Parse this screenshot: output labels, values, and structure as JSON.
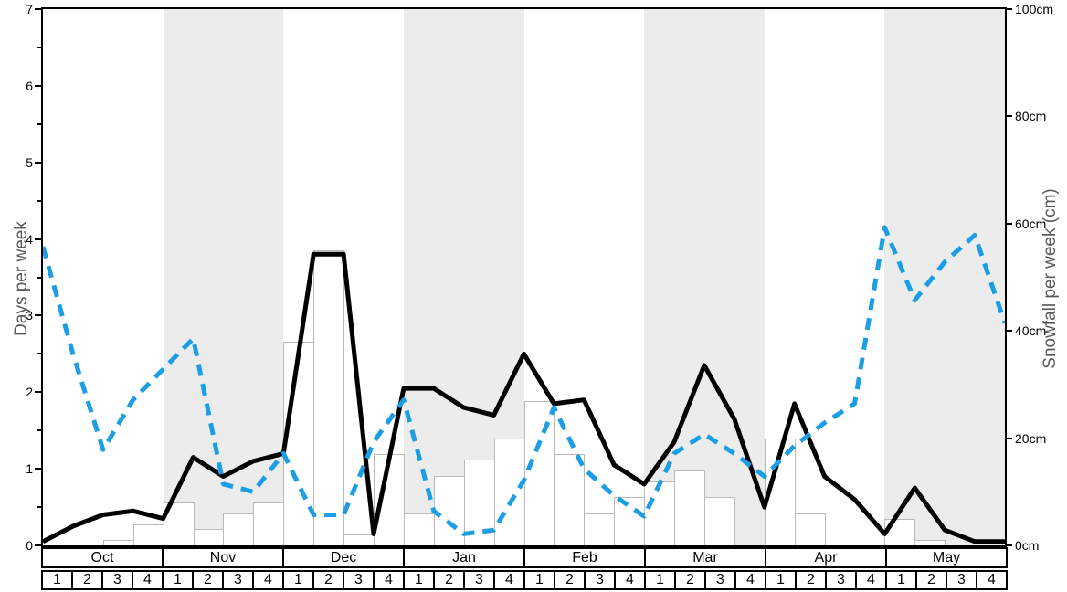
{
  "chart_data": {
    "type": "combo-bar-line",
    "title": "",
    "months": [
      "Oct",
      "Nov",
      "Dec",
      "Jan",
      "Feb",
      "Mar",
      "Apr",
      "May"
    ],
    "shaded_month_indices": [
      1,
      3,
      5,
      7
    ],
    "week_labels": [
      "1",
      "2",
      "3",
      "4"
    ],
    "left_axis": {
      "label": "Days per week",
      "min": 0,
      "max": 7,
      "tick_labels": [
        "0",
        "1",
        "2",
        "3",
        "4",
        "5",
        "6",
        "7"
      ],
      "minor_tick_step": 0.5
    },
    "right_axis": {
      "label": "Snowfall per week (cm)",
      "min": 0,
      "max": 100,
      "tick_values": [
        0,
        20,
        40,
        60,
        80,
        100
      ],
      "tick_labels": [
        "0cm",
        "20cm",
        "40cm",
        "60cm",
        "80cm",
        "100cm"
      ]
    },
    "series": [
      {
        "name": "days-per-week-solid",
        "style": "solid",
        "color": "#000000",
        "width": 5,
        "values": [
          0.05,
          0.25,
          0.4,
          0.45,
          0.35,
          1.15,
          0.9,
          1.1,
          1.2,
          3.8,
          3.8,
          0.15,
          2.05,
          2.05,
          1.8,
          1.7,
          2.5,
          1.85,
          1.9,
          1.05,
          0.8,
          1.35,
          2.35,
          1.65,
          0.5,
          1.85,
          0.9,
          0.6,
          0.15,
          0.75,
          0.2,
          0.05,
          0.05
        ]
      },
      {
        "name": "days-per-week-dashed",
        "style": "dashed",
        "color": "#1b9ee4",
        "width": 5,
        "dash": "13 9",
        "values": [
          3.9,
          2.5,
          1.25,
          1.9,
          2.3,
          2.7,
          0.8,
          0.7,
          1.2,
          0.4,
          0.4,
          1.35,
          1.9,
          0.45,
          0.15,
          0.2,
          0.85,
          1.8,
          1.0,
          0.65,
          0.38,
          1.2,
          1.45,
          1.2,
          0.9,
          1.3,
          1.6,
          1.85,
          4.15,
          3.2,
          3.7,
          4.05,
          2.9
        ]
      }
    ],
    "bars": {
      "name": "snowfall-per-week",
      "unit": "cm",
      "fill": "#ffffff",
      "border": "#b9b9b9",
      "values_cm": [
        0,
        0,
        1,
        4,
        8,
        3,
        6,
        8,
        38,
        55,
        2,
        17,
        6,
        13,
        16,
        20,
        27,
        17,
        6,
        9,
        12,
        14,
        9,
        0,
        20,
        6,
        0,
        0,
        5,
        1,
        0,
        0
      ]
    },
    "band_color": "#ececec"
  }
}
